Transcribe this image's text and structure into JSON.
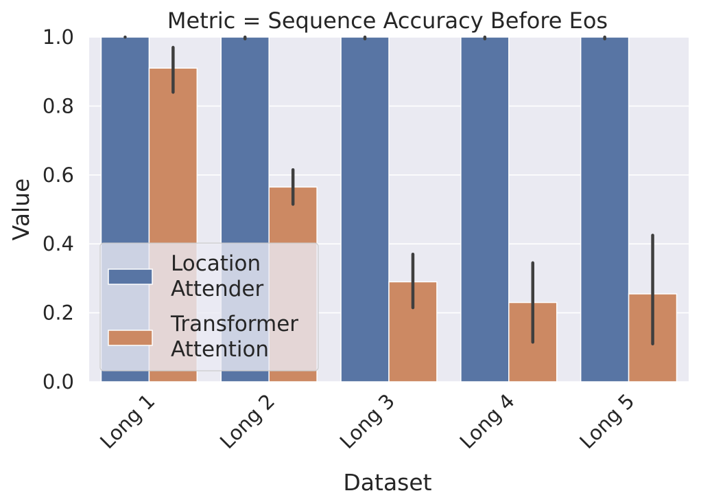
{
  "chart_data": {
    "type": "bar",
    "title": "Metric = Sequence Accuracy Before Eos",
    "xlabel": "Dataset",
    "ylabel": "Value",
    "ylim": [
      0,
      1.0
    ],
    "yticks": [
      "0.0",
      "0.2",
      "0.4",
      "0.6",
      "0.8",
      "1.0"
    ],
    "categories": [
      "Long 1",
      "Long 2",
      "Long 3",
      "Long 4",
      "Long 5"
    ],
    "grid": true,
    "legend_position": "lower-left",
    "series": [
      {
        "name": "Location Attender",
        "color": "#5875a4",
        "values": [
          1.0,
          1.0,
          1.0,
          1.0,
          1.0
        ],
        "ci_low": [
          1.0,
          0.995,
          0.995,
          0.995,
          0.995
        ],
        "ci_high": [
          1.0,
          1.0,
          1.0,
          1.0,
          1.0
        ]
      },
      {
        "name": "Transformer Attention",
        "color": "#cc8963",
        "values": [
          0.91,
          0.565,
          0.29,
          0.23,
          0.255
        ],
        "ci_low": [
          0.84,
          0.515,
          0.215,
          0.115,
          0.11
        ],
        "ci_high": [
          0.97,
          0.615,
          0.37,
          0.345,
          0.425
        ]
      }
    ]
  },
  "legend": {
    "items": [
      {
        "line1": "Location",
        "line2": "Attender"
      },
      {
        "line1": "Transformer",
        "line2": "Attention"
      }
    ]
  }
}
